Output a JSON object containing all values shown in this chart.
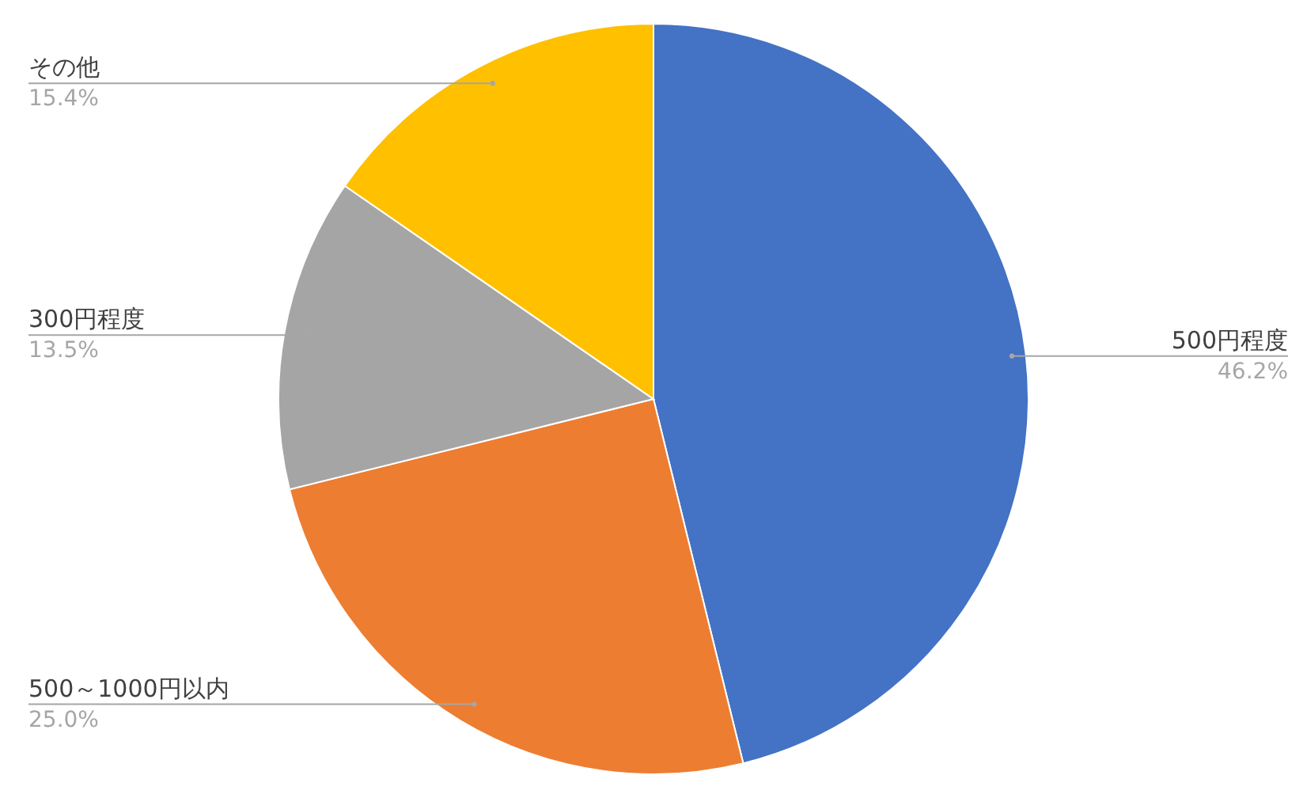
{
  "chart_data": {
    "type": "pie",
    "categories": [
      "500円程度",
      "500～1000円以内",
      "300円程度",
      "その他"
    ],
    "values": [
      46.2,
      25.0,
      13.5,
      15.4
    ],
    "colors": [
      "#4472c4",
      "#ed7d31",
      "#a5a5a5",
      "#ffc000"
    ],
    "value_labels": [
      "46.2%",
      "25.0%",
      "13.5%",
      "15.4%"
    ]
  }
}
